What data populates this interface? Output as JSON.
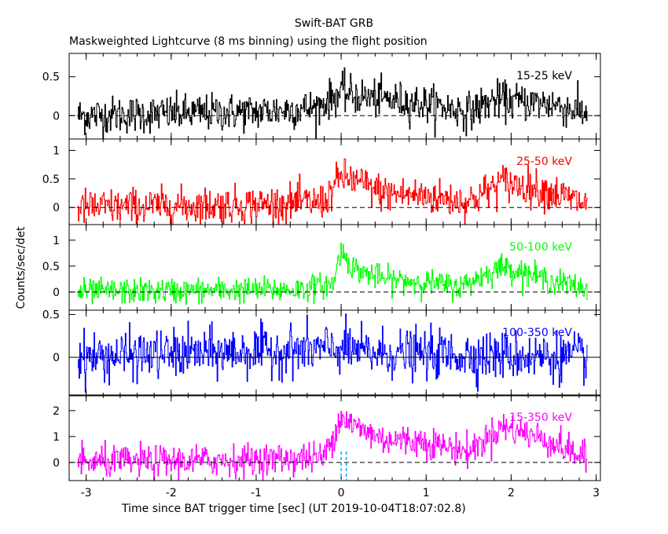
{
  "title": "Swift-BAT GRB",
  "subtitle": "Maskweighted Lightcurve (8 ms binning) using the flight position",
  "ylabel": "Counts/sec/det",
  "xlabel": "Time since BAT trigger time [sec] (UT 2019-10-04T18:07:02.8)",
  "colors": {
    "frame": "#000000",
    "panel_15_25": "#000000",
    "panel_25_50": "#ff0000",
    "panel_50_100": "#00ff00",
    "panel_100_350": "#0000ff",
    "panel_15_350": "#ff00ff",
    "trigger_lines": "#00aaff"
  },
  "chart_data": {
    "type": "line",
    "x_range": [
      -3.2,
      3.05
    ],
    "x_ticks": [
      -3,
      -2,
      -1,
      0,
      1,
      2,
      3
    ],
    "x_tick_labels": [
      "-3",
      "-2",
      "-1",
      "0",
      "1",
      "2",
      "3"
    ],
    "bin_width_s": 0.008,
    "trigger_markers_x": [
      0.0,
      0.06
    ],
    "panels": [
      {
        "name": "15-25 keV",
        "label": "15-25 keV",
        "ylim": [
          -0.3,
          0.8
        ],
        "yticks": [
          0,
          0.5
        ],
        "ytick_labels": [
          "0",
          "0.5"
        ],
        "profile": [
          [
            -3.1,
            0.0
          ],
          [
            -1.0,
            0.05
          ],
          [
            -0.3,
            0.1
          ],
          [
            0.0,
            0.3
          ],
          [
            0.2,
            0.25
          ],
          [
            1.0,
            0.15
          ],
          [
            1.5,
            0.05
          ],
          [
            1.8,
            0.2
          ],
          [
            2.5,
            0.15
          ],
          [
            2.9,
            0.02
          ]
        ],
        "noise": 0.12,
        "zero_line": "dashed"
      },
      {
        "name": "25-50 keV",
        "label": "25-50 keV",
        "ylim": [
          -0.3,
          1.2
        ],
        "yticks": [
          0,
          0.5,
          1
        ],
        "ytick_labels": [
          "0",
          "0.5",
          "1"
        ],
        "profile": [
          [
            -3.1,
            0.0
          ],
          [
            -1.0,
            0.05
          ],
          [
            -0.2,
            0.1
          ],
          [
            0.0,
            0.55
          ],
          [
            0.1,
            0.5
          ],
          [
            0.5,
            0.25
          ],
          [
            1.0,
            0.2
          ],
          [
            1.5,
            0.1
          ],
          [
            1.9,
            0.45
          ],
          [
            2.4,
            0.3
          ],
          [
            2.9,
            0.05
          ]
        ],
        "noise": 0.16,
        "zero_line": "dashed"
      },
      {
        "name": "50-100 keV",
        "label": "50-100 keV",
        "ylim": [
          -0.35,
          1.3
        ],
        "yticks": [
          0,
          0.5,
          1
        ],
        "ytick_labels": [
          "0",
          "0.5",
          "1"
        ],
        "profile": [
          [
            -3.1,
            0.0
          ],
          [
            -0.5,
            0.05
          ],
          [
            -0.1,
            0.15
          ],
          [
            0.0,
            0.8
          ],
          [
            0.15,
            0.45
          ],
          [
            0.5,
            0.25
          ],
          [
            0.9,
            0.2
          ],
          [
            1.4,
            0.1
          ],
          [
            1.9,
            0.5
          ],
          [
            2.4,
            0.25
          ],
          [
            2.9,
            0.05
          ]
        ],
        "noise": 0.12,
        "zero_line": "dashed"
      },
      {
        "name": "100-350 keV",
        "label": "100-350 keV",
        "ylim": [
          -0.45,
          0.55
        ],
        "yticks": [
          0,
          0.5
        ],
        "ytick_labels": [
          "0",
          "0.5"
        ],
        "profile": [
          [
            -3.1,
            0.0
          ],
          [
            0.0,
            0.1
          ],
          [
            0.3,
            0.05
          ],
          [
            2.9,
            0.0
          ]
        ],
        "noise": 0.14,
        "zero_line": "solid"
      },
      {
        "name": "15-350 keV",
        "label": "15-350 keV",
        "ylim": [
          -0.7,
          2.6
        ],
        "yticks": [
          0,
          1,
          2
        ],
        "ytick_labels": [
          "0",
          "1",
          "2"
        ],
        "profile": [
          [
            -3.1,
            0.0
          ],
          [
            -1.0,
            0.1
          ],
          [
            -0.2,
            0.2
          ],
          [
            0.0,
            1.8
          ],
          [
            0.15,
            1.4
          ],
          [
            0.5,
            0.9
          ],
          [
            1.0,
            0.8
          ],
          [
            1.5,
            0.4
          ],
          [
            1.9,
            1.4
          ],
          [
            2.4,
            0.9
          ],
          [
            2.9,
            0.1
          ]
        ],
        "noise": 0.3,
        "zero_line": "dashed"
      }
    ]
  }
}
